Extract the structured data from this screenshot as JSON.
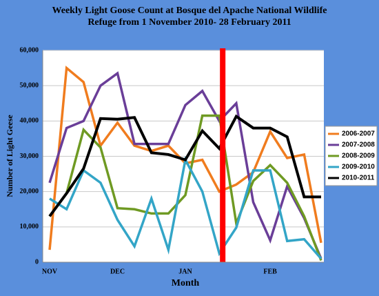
{
  "chart_data": {
    "type": "line",
    "title": [
      "Weekly Light Goose Count at Bosque del Apache National Wildlife",
      "Refuge from 1 November 2010- 28 February 2011"
    ],
    "x_label": "Month",
    "y_label": "Number of Light Geese",
    "categories": [
      "NOV",
      null,
      null,
      null,
      "DEC",
      null,
      null,
      null,
      "JAN",
      null,
      null,
      null,
      null,
      "FEB",
      null,
      null,
      null
    ],
    "ylim": [
      0,
      60000
    ],
    "yticks": [
      0,
      {
        "value": 10000,
        "label": "10,000"
      },
      {
        "value": 20000,
        "label": "20,000"
      },
      {
        "value": 30000,
        "label": "30,000"
      },
      {
        "value": 40000,
        "label": "40,000"
      },
      {
        "value": 50000,
        "label": "50,000"
      },
      {
        "value": 60000,
        "label": "60,000"
      }
    ],
    "grid": true,
    "legend": "right",
    "reference_line": {
      "index": 10.2,
      "color": "#ff0000"
    },
    "series": [
      {
        "name": "2006-2007",
        "color": "#f07c1e",
        "values": [
          3500,
          55000,
          51000,
          33000,
          39500,
          33000,
          31500,
          33000,
          28000,
          29000,
          20000,
          22000,
          25500,
          37000,
          29500,
          30500,
          5500
        ]
      },
      {
        "name": "2007-2008",
        "color": "#6a3e98",
        "values": [
          22500,
          38000,
          40000,
          50000,
          53500,
          33500,
          33500,
          33500,
          44500,
          48500,
          40000,
          45000,
          17000,
          6200,
          21500,
          12500,
          1000
        ]
      },
      {
        "name": "2008-2009",
        "color": "#6f9a23",
        "values": [
          13000,
          19500,
          37500,
          32500,
          15300,
          15000,
          13800,
          13800,
          19000,
          41500,
          41500,
          11000,
          23000,
          27500,
          22500,
          13000,
          500
        ]
      },
      {
        "name": "2009-2010",
        "color": "#33a5c7",
        "values": [
          18000,
          15000,
          26000,
          22500,
          12000,
          4500,
          18000,
          3500,
          29000,
          20000,
          2500,
          9800,
          26000,
          26000,
          6000,
          6500,
          1000
        ]
      },
      {
        "name": "2010-2011",
        "color": "#000000",
        "values": [
          13000,
          19500,
          26500,
          40700,
          40500,
          41000,
          31000,
          30500,
          29000,
          37200,
          32200,
          41300,
          38000,
          38000,
          35500,
          18500,
          18500
        ]
      }
    ]
  }
}
